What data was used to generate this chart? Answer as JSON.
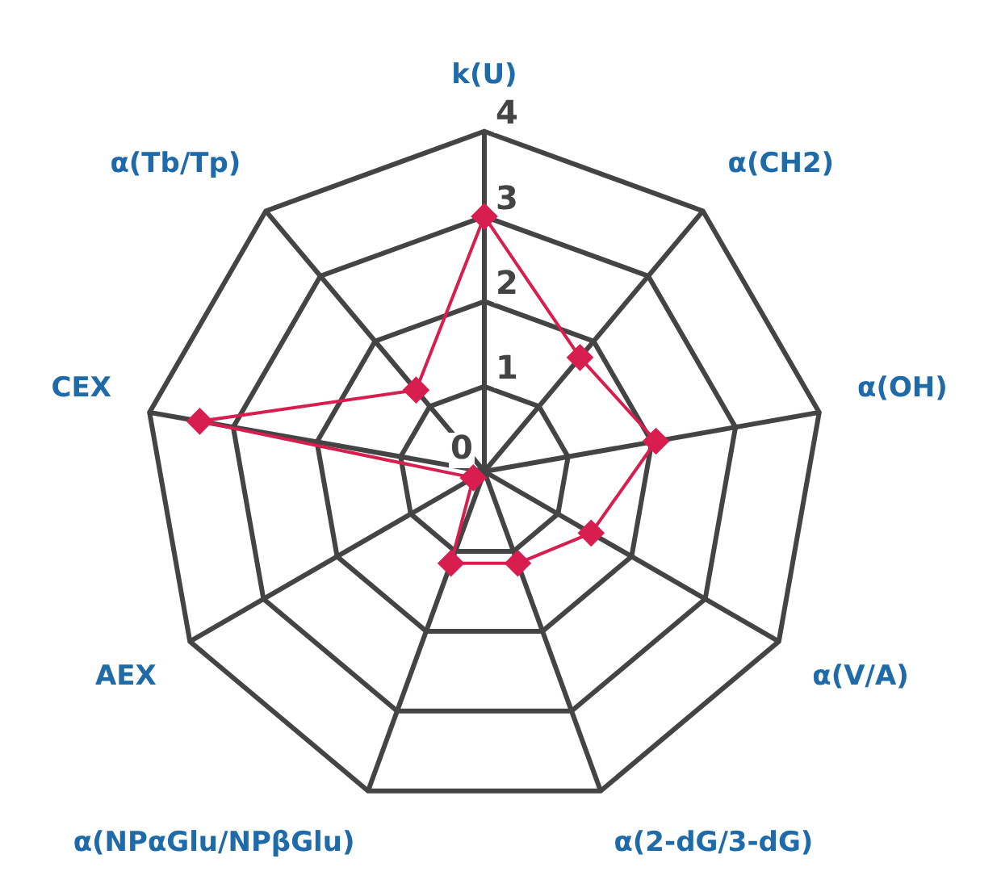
{
  "chart_data": {
    "type": "radar",
    "categories": [
      "k(U)",
      "α(CH2)",
      "α(OH)",
      "α(V/A)",
      "α(2-dG/3-dG)",
      "α(NPαGlu/NPβGlu)",
      "AEX",
      "CEX",
      "α(Tb/Tp)"
    ],
    "series": [
      {
        "color": "#d81e4f",
        "values": [
          3,
          1.75,
          2.05,
          1.45,
          1.15,
          1.15,
          0.15,
          3.4,
          1.25
        ]
      }
    ],
    "ylim": [
      0,
      4
    ],
    "yticks": [
      0,
      1,
      2,
      3,
      4
    ],
    "grid": true,
    "marker": "diamond"
  }
}
